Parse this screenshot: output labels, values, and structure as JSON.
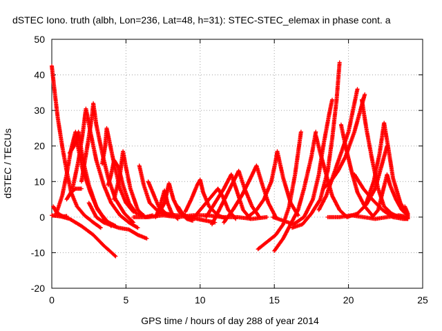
{
  "chart_data": {
    "type": "scatter",
    "title": "dSTEC Iono. truth (albh, Lon=236, Lat=48, h=31): STEC-STEC_elemax in phase cont. a",
    "xlabel": "GPS time / hours of day 288 of year 2014",
    "ylabel": "dSTEC  / TECUs",
    "xlim": [
      0,
      25
    ],
    "ylim": [
      -20,
      50
    ],
    "xticks": [
      0,
      5,
      10,
      15,
      20,
      25
    ],
    "yticks": [
      -20,
      -10,
      0,
      10,
      20,
      30,
      40,
      50
    ],
    "xtick_labels": [
      "0",
      "5",
      "10",
      "15",
      "20",
      "25"
    ],
    "ytick_labels": [
      "-20",
      "-10",
      "0",
      "10",
      "20",
      "30",
      "40",
      "50"
    ],
    "grid": true,
    "marker": "plus",
    "color": "#ff0000",
    "series": [
      {
        "points": [
          [
            0.0,
            42.5
          ],
          [
            0.2,
            35
          ],
          [
            0.4,
            28
          ],
          [
            0.7,
            20
          ],
          [
            1.0,
            13
          ],
          [
            1.3,
            7
          ],
          [
            1.7,
            3
          ],
          [
            2.2,
            0.5
          ],
          [
            2.8,
            -1.5
          ],
          [
            3.3,
            -3
          ]
        ]
      },
      {
        "points": [
          [
            0.1,
            3
          ],
          [
            0.3,
            1.5
          ],
          [
            0.6,
            0.5
          ],
          [
            0.8,
            0.2
          ],
          [
            1.0,
            0.3
          ]
        ]
      },
      {
        "points": [
          [
            0.0,
            0.5
          ],
          [
            0.6,
            0.2
          ],
          [
            1.2,
            -0.5
          ],
          [
            2.0,
            -2.5
          ],
          [
            2.8,
            -5
          ],
          [
            3.5,
            -8
          ],
          [
            4.3,
            -11
          ]
        ]
      },
      {
        "points": [
          [
            0.3,
            1
          ],
          [
            0.7,
            6
          ],
          [
            1.0,
            12
          ],
          [
            1.3,
            19
          ],
          [
            1.6,
            24
          ],
          [
            1.8,
            19
          ],
          [
            2.1,
            13
          ],
          [
            2.6,
            7
          ],
          [
            3.1,
            2
          ],
          [
            3.6,
            -0.5
          ],
          [
            4.0,
            -2.5
          ]
        ]
      },
      {
        "points": [
          [
            1.2,
            18
          ],
          [
            1.5,
            20
          ],
          [
            1.8,
            24
          ],
          [
            2.1,
            16
          ],
          [
            2.5,
            9
          ],
          [
            3.0,
            3
          ],
          [
            3.6,
            -1
          ],
          [
            4.3,
            -2.5
          ]
        ]
      },
      {
        "points": [
          [
            1.0,
            5
          ],
          [
            1.3,
            7
          ],
          [
            1.6,
            8
          ],
          [
            2.0,
            8
          ]
        ]
      },
      {
        "points": [
          [
            1.4,
            8
          ],
          [
            1.8,
            16
          ],
          [
            2.1,
            24
          ],
          [
            2.3,
            30.5
          ],
          [
            2.6,
            24
          ],
          [
            3.0,
            16
          ],
          [
            3.5,
            9
          ],
          [
            4.0,
            4
          ],
          [
            4.6,
            0.5
          ],
          [
            5.2,
            -1.5
          ],
          [
            5.8,
            -3
          ]
        ]
      },
      {
        "points": [
          [
            2.0,
            10
          ],
          [
            2.4,
            20
          ],
          [
            2.7,
            28
          ],
          [
            2.8,
            32
          ],
          [
            3.0,
            26
          ],
          [
            3.4,
            18
          ],
          [
            3.8,
            11
          ],
          [
            4.3,
            5
          ],
          [
            4.9,
            1
          ],
          [
            5.5,
            -1.5
          ]
        ]
      },
      {
        "points": [
          [
            3.4,
            15
          ],
          [
            3.6,
            20
          ],
          [
            3.7,
            25
          ],
          [
            3.9,
            21
          ],
          [
            4.2,
            15
          ],
          [
            4.6,
            8
          ],
          [
            5.0,
            4
          ],
          [
            5.5,
            1.5
          ]
        ]
      },
      {
        "points": [
          [
            3.8,
            9
          ],
          [
            4.0,
            12
          ],
          [
            4.2,
            16
          ],
          [
            4.5,
            14
          ],
          [
            4.8,
            9
          ],
          [
            5.2,
            4
          ],
          [
            5.7,
            1
          ],
          [
            6.2,
            0.5
          ]
        ]
      },
      {
        "points": [
          [
            4.2,
            5
          ],
          [
            4.6,
            12
          ],
          [
            4.8,
            18.5
          ],
          [
            5.0,
            14
          ],
          [
            5.3,
            8
          ],
          [
            5.8,
            2
          ],
          [
            6.3,
            0
          ],
          [
            6.8,
            0.5
          ]
        ]
      },
      {
        "points": [
          [
            2.5,
            4
          ],
          [
            3.0,
            0
          ],
          [
            3.5,
            -1.5
          ],
          [
            4.5,
            -3
          ],
          [
            5.2,
            -3.5
          ],
          [
            5.8,
            -5
          ],
          [
            6.4,
            -6
          ]
        ]
      },
      {
        "points": [
          [
            5.9,
            14.5
          ],
          [
            6.2,
            9
          ],
          [
            6.6,
            4
          ],
          [
            7.2,
            1.5
          ],
          [
            7.9,
            0.5
          ],
          [
            8.6,
            0.5
          ]
        ]
      },
      {
        "points": [
          [
            6.5,
            10
          ],
          [
            6.8,
            7
          ],
          [
            7.2,
            3
          ],
          [
            7.7,
            1
          ],
          [
            8.3,
            0.5
          ]
        ]
      },
      {
        "points": [
          [
            7.0,
            0
          ],
          [
            7.3,
            3
          ],
          [
            7.6,
            7.5
          ],
          [
            7.8,
            4
          ],
          [
            8.1,
            1
          ],
          [
            8.5,
            -0.5
          ]
        ]
      },
      {
        "points": [
          [
            7.2,
            1
          ],
          [
            7.6,
            4
          ],
          [
            7.9,
            9.5
          ],
          [
            8.2,
            5
          ],
          [
            8.6,
            1.5
          ],
          [
            9.1,
            -0.5
          ],
          [
            9.5,
            -1
          ]
        ]
      },
      {
        "points": [
          [
            8.5,
            3
          ],
          [
            8.8,
            1
          ],
          [
            9.2,
            0
          ],
          [
            9.8,
            -0.5
          ],
          [
            10.4,
            -1
          ],
          [
            11.0,
            -1.5
          ]
        ]
      },
      {
        "points": [
          [
            9.0,
            1.5
          ],
          [
            9.4,
            5
          ],
          [
            9.8,
            9
          ],
          [
            10.0,
            10.5
          ],
          [
            10.2,
            7
          ],
          [
            10.6,
            3
          ],
          [
            11.2,
            0.5
          ],
          [
            11.8,
            -0.5
          ]
        ]
      },
      {
        "points": [
          [
            9.6,
            0
          ],
          [
            10.2,
            3
          ],
          [
            10.8,
            6
          ],
          [
            11.2,
            8
          ],
          [
            11.5,
            6
          ],
          [
            11.9,
            2
          ],
          [
            12.4,
            -0.5
          ]
        ]
      },
      {
        "points": [
          [
            10.4,
            0
          ],
          [
            11.0,
            4
          ],
          [
            11.6,
            8
          ],
          [
            12.1,
            12
          ],
          [
            12.5,
            7
          ],
          [
            12.9,
            2
          ],
          [
            13.4,
            -0.5
          ]
        ]
      },
      {
        "points": [
          [
            10.8,
            -2
          ],
          [
            11.4,
            3
          ],
          [
            12.0,
            8
          ],
          [
            12.6,
            13
          ],
          [
            13.0,
            8
          ],
          [
            13.5,
            3
          ],
          [
            14.0,
            0
          ]
        ]
      },
      {
        "points": [
          [
            11.6,
            -1.5
          ],
          [
            12.2,
            2
          ],
          [
            12.8,
            6
          ],
          [
            13.4,
            11
          ],
          [
            13.8,
            14.5
          ],
          [
            14.2,
            9
          ],
          [
            14.6,
            4
          ],
          [
            15.1,
            0
          ]
        ]
      },
      {
        "points": [
          [
            13.2,
            0
          ],
          [
            13.8,
            2
          ],
          [
            14.3,
            5
          ],
          [
            14.8,
            10
          ],
          [
            15.1,
            16
          ],
          [
            15.2,
            18.5
          ],
          [
            15.6,
            11
          ],
          [
            16.1,
            4
          ],
          [
            16.6,
            0.5
          ]
        ]
      },
      {
        "points": [
          [
            13.9,
            -9
          ],
          [
            14.5,
            -7
          ],
          [
            15.1,
            -5
          ],
          [
            15.6,
            -2
          ],
          [
            16.0,
            3
          ],
          [
            16.4,
            12
          ],
          [
            16.8,
            24
          ]
        ]
      },
      {
        "points": [
          [
            15.0,
            -9.5
          ],
          [
            15.6,
            -6
          ],
          [
            16.1,
            -2
          ],
          [
            16.6,
            2
          ],
          [
            17.0,
            8
          ],
          [
            17.5,
            17
          ],
          [
            17.8,
            24
          ]
        ]
      },
      {
        "points": [
          [
            14.9,
            0
          ],
          [
            15.6,
            -1
          ],
          [
            16.3,
            -2
          ],
          [
            17.0,
            0
          ],
          [
            17.6,
            5
          ],
          [
            18.0,
            12
          ],
          [
            18.3,
            20
          ],
          [
            18.7,
            29
          ],
          [
            18.9,
            33
          ]
        ]
      },
      {
        "points": [
          [
            16.2,
            -3
          ],
          [
            16.9,
            -2
          ],
          [
            17.5,
            1
          ],
          [
            18.1,
            5
          ],
          [
            18.6,
            13
          ],
          [
            18.9,
            22
          ],
          [
            19.2,
            33
          ],
          [
            19.4,
            43.5
          ]
        ]
      },
      {
        "points": [
          [
            17.8,
            23
          ],
          [
            18.1,
            18
          ],
          [
            18.5,
            12
          ],
          [
            18.9,
            6
          ],
          [
            19.4,
            2
          ],
          [
            19.9,
            0
          ]
        ]
      },
      {
        "points": [
          [
            18.0,
            2
          ],
          [
            18.5,
            6
          ],
          [
            19.0,
            12
          ],
          [
            19.5,
            18
          ],
          [
            20.0,
            24
          ],
          [
            20.3,
            30
          ],
          [
            20.6,
            36
          ]
        ]
      },
      {
        "points": [
          [
            19.5,
            26
          ],
          [
            19.8,
            20
          ],
          [
            20.2,
            13
          ],
          [
            20.6,
            7
          ],
          [
            21.1,
            3
          ],
          [
            21.6,
            0.5
          ]
        ]
      },
      {
        "points": [
          [
            18.3,
            8
          ],
          [
            18.8,
            10
          ],
          [
            19.3,
            13
          ],
          [
            19.8,
            17
          ],
          [
            20.4,
            24
          ],
          [
            20.8,
            30
          ],
          [
            21.1,
            34.5
          ]
        ]
      },
      {
        "points": [
          [
            20.9,
            33
          ],
          [
            21.2,
            25
          ],
          [
            21.6,
            16
          ],
          [
            22.0,
            8
          ],
          [
            22.4,
            3
          ],
          [
            22.9,
            1
          ],
          [
            23.4,
            0
          ]
        ]
      },
      {
        "points": [
          [
            21.2,
            4
          ],
          [
            21.7,
            10
          ],
          [
            22.1,
            18
          ],
          [
            22.4,
            26.5
          ],
          [
            22.7,
            19
          ],
          [
            23.0,
            11
          ],
          [
            23.5,
            4
          ],
          [
            23.9,
            1
          ]
        ]
      },
      {
        "points": [
          [
            21.6,
            0
          ],
          [
            22.0,
            2
          ],
          [
            22.6,
            12
          ],
          [
            22.8,
            9
          ],
          [
            23.2,
            5
          ],
          [
            23.6,
            2
          ],
          [
            24.0,
            0.5
          ]
        ]
      },
      {
        "points": [
          [
            19.9,
            0
          ],
          [
            20.6,
            1
          ],
          [
            21.2,
            3.5
          ],
          [
            21.8,
            8
          ],
          [
            22.2,
            14
          ],
          [
            22.6,
            20
          ]
        ]
      },
      {
        "points": [
          [
            18.6,
            0
          ],
          [
            19.4,
            0
          ],
          [
            20.2,
            0.5
          ],
          [
            21.0,
            0
          ],
          [
            21.8,
            -0.5
          ],
          [
            22.6,
            0
          ],
          [
            23.4,
            0.5
          ],
          [
            24.0,
            0
          ]
        ]
      },
      {
        "points": [
          [
            20.4,
            12
          ],
          [
            21.0,
            8
          ],
          [
            21.6,
            5
          ],
          [
            22.3,
            2
          ],
          [
            23.0,
            0
          ],
          [
            23.7,
            -0.5
          ],
          [
            24.0,
            -0.5
          ]
        ]
      },
      {
        "points": [
          [
            23.8,
            3
          ],
          [
            24.0,
            1
          ],
          [
            24.0,
            -0.5
          ]
        ]
      },
      {
        "points": [
          [
            5.5,
            0
          ],
          [
            6.5,
            0
          ],
          [
            7.5,
            0.5
          ],
          [
            8.5,
            0
          ],
          [
            9.5,
            0.5
          ],
          [
            10.5,
            0.5
          ],
          [
            11.5,
            0
          ],
          [
            12.5,
            0
          ],
          [
            13.5,
            -0.5
          ],
          [
            14.5,
            0
          ]
        ]
      }
    ]
  }
}
